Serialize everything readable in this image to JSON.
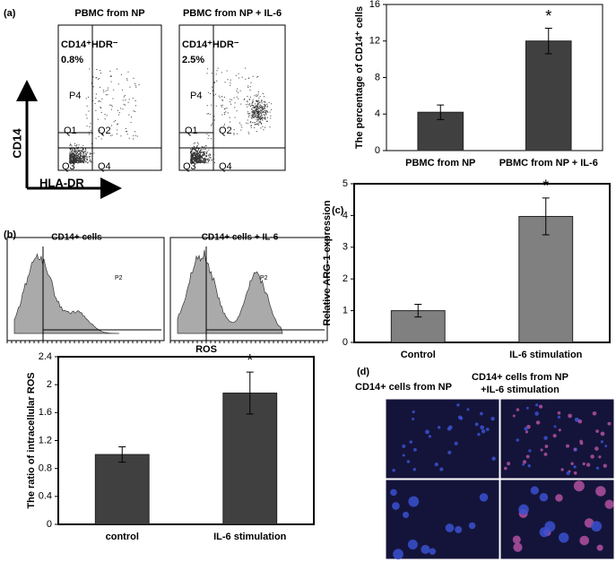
{
  "panels": {
    "labels": [
      "(a)",
      "(b)",
      "(c)",
      "(d)"
    ],
    "flow": [
      {
        "title": "PBMC from NP",
        "gate": "CD14⁺HDR⁻",
        "percent": "0.8%"
      },
      {
        "title": "PBMC from NP + IL-6",
        "gate": "CD14⁺HDR⁻",
        "percent": "2.5%"
      }
    ],
    "flow_gates": [
      "P4",
      "Q1",
      "Q2",
      "Q3",
      "Q4"
    ],
    "flow_axes": {
      "y": "CD14",
      "x": "HLA-DR"
    },
    "histograms": [
      {
        "title": "CD14+ cells",
        "gate": "P2"
      },
      {
        "title": "CD14+ cells + IL-6",
        "gate": "P2"
      }
    ],
    "histogram_axis": "ROS",
    "images": {
      "titles": [
        "CD14+ cells from NP",
        "CD14+ cells from NP",
        "+IL-6 stimulation"
      ]
    }
  },
  "chart_data": [
    {
      "type": "bar",
      "ylabel": "The percentage of CD14⁺ cells",
      "categories": [
        "PBMC from NP",
        "PBMC from NP + IL-6"
      ],
      "values": [
        4.2,
        12
      ],
      "errors": [
        0.8,
        1.4
      ],
      "color": "#404040",
      "ylim": [
        0,
        16
      ],
      "yticks": [
        0,
        4,
        8,
        12,
        16
      ],
      "annotation": "*"
    },
    {
      "type": "bar",
      "ylabel": "Relative ARG-1 expression",
      "categories": [
        "Control",
        "IL-6 stimulation"
      ],
      "values": [
        1,
        3.97
      ],
      "errors": [
        0.2,
        0.58
      ],
      "color": "#808080",
      "ylim": [
        0,
        5
      ],
      "yticks": [
        0,
        1,
        2,
        3,
        4,
        5
      ],
      "annotation": "*"
    },
    {
      "type": "bar",
      "ylabel": "The ratio of intracellular ROS",
      "categories": [
        "control",
        "IL-6 stimulation"
      ],
      "values": [
        1,
        1.88
      ],
      "errors": [
        0.11,
        0.3
      ],
      "color": "#404040",
      "ylim": [
        0,
        2.4
      ],
      "yticks": [
        0,
        0.4,
        0.8,
        1.2,
        1.6,
        2,
        2.4
      ],
      "annotation": "*"
    }
  ]
}
